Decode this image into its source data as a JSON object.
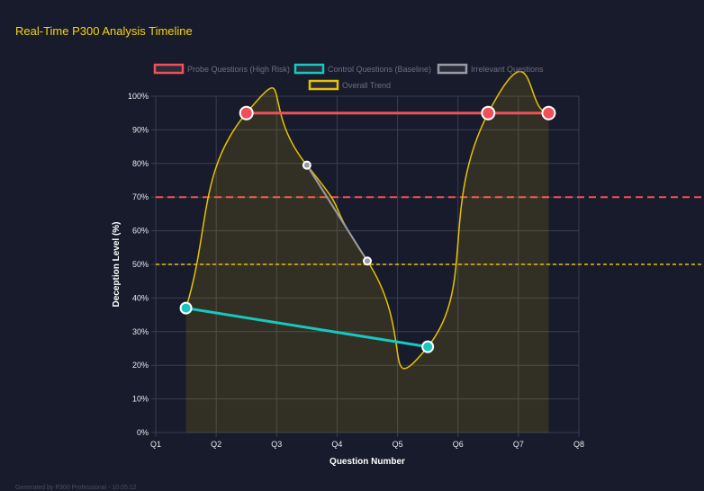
{
  "title": "Real-Time P300 Analysis Timeline",
  "footer": "Generated by P300 Professional - 10:05:12",
  "chart_data": {
    "type": "line",
    "xlabel": "Question Number",
    "ylabel": "Deception Level (%)",
    "xticks": [
      "Q1",
      "Q2",
      "Q3",
      "Q4",
      "Q5",
      "Q6",
      "Q7",
      "Q8"
    ],
    "yticks": [
      "0%",
      "10%",
      "20%",
      "30%",
      "40%",
      "50%",
      "60%",
      "70%",
      "80%",
      "90%",
      "100%"
    ],
    "ylim": [
      0,
      100
    ],
    "grid": true,
    "legend_position": "top",
    "series": [
      {
        "name": "Probe Questions (High Risk)",
        "color": "#f0505a",
        "x": [
          2.5,
          6.5,
          7.5
        ],
        "y": [
          95,
          95,
          95
        ]
      },
      {
        "name": "Control Questions (Baseline)",
        "color": "#17c8c0",
        "x": [
          1.5,
          5.5
        ],
        "y": [
          37,
          25.5
        ]
      },
      {
        "name": "Irrelevant Questions",
        "color": "#9a9aa4",
        "x": [
          3.5,
          4.5
        ],
        "y": [
          79.5,
          51
        ]
      },
      {
        "name": "Overall Trend",
        "color": "#e6c200",
        "x": [
          1.5,
          2.5,
          3.5,
          4.5,
          5.5,
          6.5,
          7.5
        ],
        "y": [
          37,
          95,
          79.5,
          51,
          25.5,
          95,
          95
        ],
        "fill": true
      }
    ],
    "thresholds": [
      {
        "value": 70,
        "color": "#f0505a"
      },
      {
        "value": 50,
        "color": "#e6c200"
      }
    ]
  }
}
